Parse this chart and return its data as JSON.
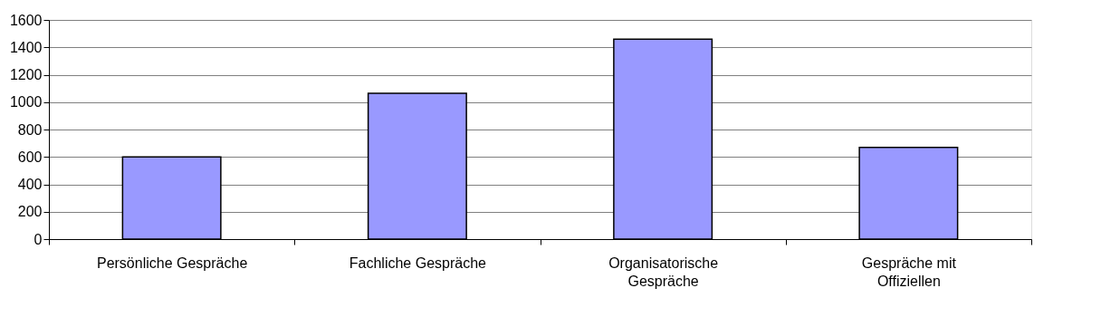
{
  "chart_data": {
    "type": "bar",
    "categories": [
      "Persönliche Gespräche",
      "Fachliche Gespräche",
      "Organisatorische Gespräche",
      "Gespräche mit Offiziellen"
    ],
    "values": [
      600,
      1065,
      1460,
      670
    ],
    "color": "#9999ff",
    "ylim": [
      0,
      1600
    ],
    "yticks": [
      0,
      200,
      400,
      600,
      800,
      1000,
      1200,
      1400,
      1600
    ],
    "grid": "y"
  }
}
